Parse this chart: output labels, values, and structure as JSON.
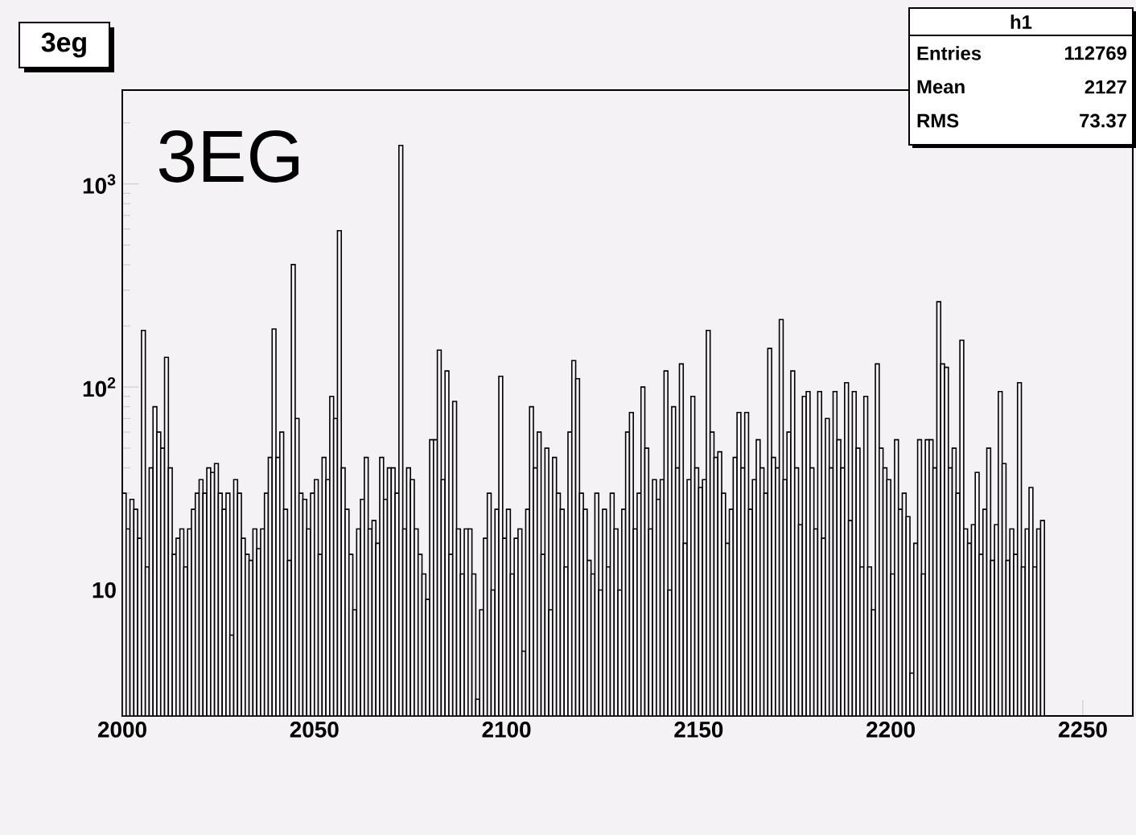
{
  "chart_data": {
    "type": "histogram",
    "title": "3eg",
    "annotations": [
      "3EG",
      "h1",
      "Entries",
      "112769",
      "Mean",
      "2127",
      "RMS",
      "73.37"
    ],
    "bins": [
      2000,
      2001,
      2002,
      2003,
      2004,
      2005,
      2006,
      2007,
      2008,
      2009,
      2010,
      2011,
      2012,
      2013,
      2014,
      2015,
      2016,
      2017,
      2018,
      2019,
      2020,
      2021,
      2022,
      2023,
      2024,
      2025,
      2026,
      2027,
      2028,
      2029,
      2030,
      2031,
      2032,
      2033,
      2034,
      2035,
      2036,
      2037,
      2038,
      2039,
      2040,
      2041,
      2042,
      2043,
      2044,
      2045,
      2046,
      2047,
      2048,
      2049,
      2050,
      2051,
      2052,
      2053,
      2054,
      2055,
      2056,
      2057,
      2058,
      2059,
      2060,
      2061,
      2062,
      2063,
      2064,
      2065,
      2066,
      2067,
      2068,
      2069,
      2070,
      2071,
      2072,
      2073,
      2074,
      2075,
      2076,
      2077,
      2078,
      2079,
      2080,
      2081,
      2082,
      2083,
      2084,
      2085,
      2086,
      2087,
      2088,
      2089,
      2090,
      2091,
      2092,
      2093,
      2094,
      2095,
      2096,
      2097,
      2098,
      2099,
      2100,
      2101,
      2102,
      2103,
      2104,
      2105,
      2106,
      2107,
      2108,
      2109,
      2110,
      2111,
      2112,
      2113,
      2114,
      2115,
      2116,
      2117,
      2118,
      2119,
      2120,
      2121,
      2122,
      2123,
      2124,
      2125,
      2126,
      2127,
      2128,
      2129,
      2130,
      2131,
      2132,
      2133,
      2134,
      2135,
      2136,
      2137,
      2138,
      2139,
      2140,
      2141,
      2142,
      2143,
      2144,
      2145,
      2146,
      2147,
      2148,
      2149,
      2150,
      2151,
      2152,
      2153,
      2154,
      2155,
      2156,
      2157,
      2158,
      2159,
      2160,
      2161,
      2162,
      2163,
      2164,
      2165,
      2166,
      2167,
      2168,
      2169,
      2170,
      2171,
      2172,
      2173,
      2174,
      2175,
      2176,
      2177,
      2178,
      2179,
      2180,
      2181,
      2182,
      2183,
      2184,
      2185,
      2186,
      2187,
      2188,
      2189,
      2190,
      2191,
      2192,
      2193,
      2194,
      2195,
      2196,
      2197,
      2198,
      2199,
      2200,
      2201,
      2202,
      2203,
      2204,
      2205,
      2206,
      2207,
      2208,
      2209,
      2210,
      2211,
      2212,
      2213,
      2214,
      2215,
      2216,
      2217,
      2218,
      2219,
      2220,
      2221,
      2222,
      2223,
      2224,
      2225,
      2226,
      2227,
      2228,
      2229,
      2230,
      2231,
      2232,
      2233,
      2234,
      2235,
      2236,
      2237,
      2238,
      2239,
      2240
    ],
    "values": [
      30,
      20,
      28,
      25,
      18,
      190,
      13,
      40,
      80,
      60,
      50,
      140,
      40,
      15,
      18,
      20,
      13,
      20,
      25,
      30,
      35,
      30,
      40,
      38,
      42,
      30,
      25,
      30,
      6,
      35,
      30,
      18,
      15,
      14,
      20,
      16,
      20,
      30,
      45,
      193,
      45,
      60,
      25,
      14,
      401,
      70,
      30,
      28,
      20,
      30,
      35,
      15,
      45,
      35,
      90,
      70,
      589,
      40,
      25,
      15,
      8,
      20,
      28,
      45,
      20,
      22,
      17,
      45,
      28,
      40,
      40,
      30,
      1550,
      20,
      40,
      35,
      20,
      15,
      12,
      9,
      55,
      55,
      152,
      35,
      120,
      15,
      85,
      20,
      12,
      20,
      20,
      12,
      2.9,
      8,
      18,
      30,
      10,
      25,
      113,
      18,
      25,
      12,
      18,
      20,
      5,
      25,
      80,
      40,
      60,
      15,
      50,
      8,
      45,
      30,
      25,
      13,
      60,
      135,
      110,
      30,
      25,
      14,
      12,
      30,
      10,
      25,
      13,
      30,
      20,
      10,
      25,
      60,
      75,
      20,
      30,
      100,
      50,
      20,
      35,
      28,
      35,
      120,
      10,
      80,
      40,
      130,
      17,
      35,
      90,
      40,
      32,
      35,
      190,
      60,
      45,
      48,
      30,
      17,
      25,
      45,
      75,
      40,
      75,
      25,
      35,
      55,
      40,
      30,
      155,
      45,
      40,
      215,
      35,
      60,
      120,
      40,
      21,
      90,
      95,
      40,
      20,
      95,
      18,
      70,
      40,
      95,
      55,
      40,
      105,
      22,
      95,
      50,
      13,
      90,
      13,
      8,
      130,
      50,
      40,
      35,
      12,
      55,
      25,
      30,
      23,
      3.9,
      17,
      55,
      12,
      55,
      55,
      40,
      263,
      130,
      125,
      40,
      50,
      30,
      170,
      20,
      17,
      21,
      38,
      15,
      25,
      50,
      14,
      21,
      95,
      42,
      14,
      20,
      15,
      105,
      13,
      20,
      32,
      13,
      20,
      22
    ],
    "color": "#000000",
    "log": "y",
    "xlim": [
      2000,
      2263
    ],
    "ylim": [
      2.4,
      2900
    ],
    "xticks": [
      2000,
      2050,
      2100,
      2150,
      2200,
      2250
    ],
    "yticks": [
      10,
      {
        "value": 100,
        "label": "10$^{2}$"
      },
      {
        "value": 1000,
        "label": "10$^{3}$"
      }
    ]
  }
}
